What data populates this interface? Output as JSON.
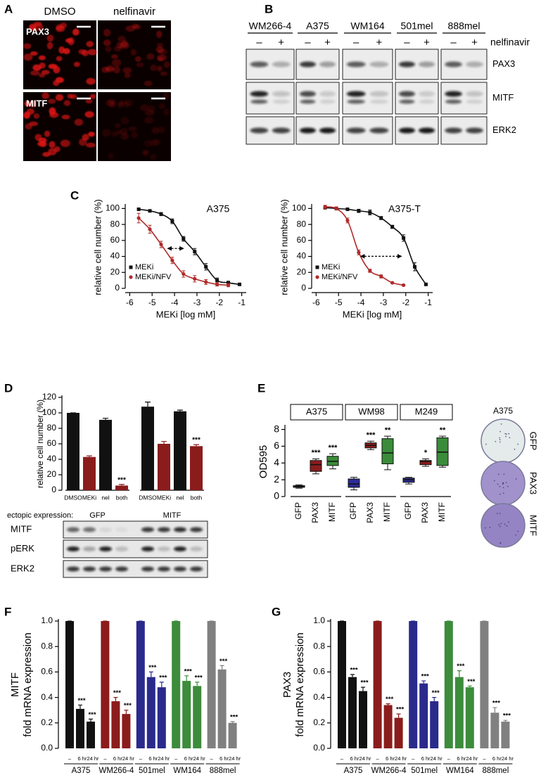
{
  "panels": {
    "A": {
      "letter": "A",
      "columns": [
        "DMSO",
        "nelfinavir"
      ],
      "rows": [
        "PAX3",
        "MITF"
      ]
    },
    "B": {
      "letter": "B",
      "cell_lines": [
        "WM266-4",
        "A375",
        "WM164",
        "501mel",
        "888mel"
      ],
      "treatments": [
        "–",
        "+"
      ],
      "treatment_label": "nelfinavir",
      "proteins": [
        "PAX3",
        "MITF",
        "ERK2"
      ]
    },
    "C": {
      "letter": "C"
    },
    "D": {
      "letter": "D",
      "ectopic_label": "ectopic expression:",
      "blot_proteins": [
        "MITF",
        "pERK",
        "ERK2"
      ]
    },
    "E": {
      "letter": "E",
      "plate_title": "A375",
      "plate_labels": [
        "GFP",
        "PAX3",
        "MITF"
      ]
    },
    "F": {
      "letter": "F"
    },
    "G": {
      "letter": "G"
    }
  },
  "chart_data": [
    {
      "type": "line",
      "title": "A375",
      "xlabel": "MEKi [log mM]",
      "ylabel": "relative cell number (%)",
      "x": [
        -5.6,
        -5.1,
        -4.6,
        -4.1,
        -3.6,
        -3.1,
        -2.6,
        -2.1,
        -1.6,
        -1.1
      ],
      "series": [
        {
          "name": "MEKi",
          "color": "#111111",
          "marker": "square",
          "values": [
            99,
            97,
            93,
            84,
            62,
            46,
            27,
            10,
            7,
            5
          ],
          "errors": [
            1,
            1,
            2,
            3,
            3,
            4,
            4,
            3,
            2,
            1
          ]
        },
        {
          "name": "MEKi/NFV",
          "color": "#b02a2a",
          "marker": "circle",
          "values": [
            88,
            74,
            55,
            35,
            18,
            12,
            8,
            5,
            4,
            null
          ],
          "errors": [
            6,
            5,
            4,
            4,
            4,
            4,
            3,
            2,
            2,
            null
          ]
        }
      ],
      "xlim": [
        -6.2,
        -0.8
      ],
      "ylim": [
        0,
        103
      ],
      "xticks": [
        -6,
        -5,
        -4,
        -3,
        -2,
        -1
      ],
      "yticks": [
        0,
        20,
        40,
        60,
        80,
        100
      ],
      "legend": "lower left"
    },
    {
      "type": "line",
      "title": "A375-T",
      "xlabel": "MEKi [log mM]",
      "ylabel": "relative cell number (%)",
      "x": [
        -5.6,
        -5.1,
        -4.6,
        -4.1,
        -3.6,
        -3.1,
        -2.6,
        -2.1,
        -1.6,
        -1.1
      ],
      "series": [
        {
          "name": "MEKi",
          "color": "#111111",
          "marker": "square",
          "values": [
            101,
            100,
            99,
            97,
            95,
            88,
            77,
            63,
            27,
            5
          ],
          "errors": [
            1,
            1,
            1,
            2,
            3,
            2,
            2,
            4,
            5,
            1
          ]
        },
        {
          "name": "MEKi/NFV",
          "color": "#b02a2a",
          "marker": "circle",
          "values": [
            102,
            100,
            85,
            45,
            22,
            15,
            7,
            4,
            null,
            null
          ],
          "errors": [
            2,
            2,
            3,
            3,
            2,
            2,
            1,
            1,
            null,
            null
          ]
        }
      ],
      "xlim": [
        -6.2,
        -0.8
      ],
      "ylim": [
        0,
        103
      ],
      "xticks": [
        -6,
        -5,
        -4,
        -3,
        -2,
        -1
      ],
      "yticks": [
        0,
        20,
        40,
        60,
        80,
        100
      ],
      "legend": "lower left"
    },
    {
      "type": "bar",
      "ylabel": "relative cell number (%)",
      "categories": [
        "DMSO",
        "MEKi",
        "nel",
        "both",
        "DMSO",
        "MEKi",
        "nel",
        "both"
      ],
      "groups": [
        "GFP",
        "MITF"
      ],
      "values": [
        100,
        43,
        91,
        6,
        108,
        60,
        102,
        57
      ],
      "errors": [
        0,
        1.5,
        2,
        1.5,
        6,
        3,
        1.5,
        2
      ],
      "colors": [
        "#111111",
        "#8b1c1c",
        "#111111",
        "#8b1c1c",
        "#111111",
        "#8b1c1c",
        "#111111",
        "#8b1c1c"
      ],
      "significance": [
        null,
        null,
        null,
        "***",
        null,
        null,
        null,
        "***"
      ],
      "ylim": [
        0,
        120
      ],
      "yticks": [
        0,
        20,
        40,
        60,
        80,
        100,
        120
      ]
    },
    {
      "type": "box",
      "ylabel": "OD595",
      "groups": [
        "A375",
        "WM98",
        "M249"
      ],
      "categories": [
        "GFP",
        "PAX3",
        "MITF"
      ],
      "colors": [
        "#2b2b96",
        "#8b1c1c",
        "#3a8c3a"
      ],
      "values": [
        [
          [
            1.0,
            1.1,
            1.2,
            1.3,
            1.4
          ],
          [
            2.7,
            3.0,
            3.8,
            4.3,
            4.5
          ],
          [
            3.3,
            3.7,
            4.2,
            4.8,
            5.1
          ]
        ],
        [
          [
            0.8,
            1.1,
            1.5,
            2.1,
            2.3
          ],
          [
            5.6,
            5.8,
            6.1,
            6.4,
            6.6
          ],
          [
            3.2,
            3.9,
            5.2,
            6.9,
            7.2
          ]
        ],
        [
          [
            1.5,
            1.7,
            2.0,
            2.2,
            2.3
          ],
          [
            3.6,
            3.8,
            4.2,
            4.3,
            4.5
          ],
          [
            3.5,
            3.7,
            5.3,
            7.0,
            7.2
          ]
        ]
      ],
      "significance": [
        [
          null,
          "***",
          "***"
        ],
        [
          null,
          "***",
          "**"
        ],
        [
          null,
          "*",
          "**"
        ]
      ],
      "ylim": [
        0,
        8.3
      ],
      "yticks": [
        0,
        2,
        4,
        6,
        8
      ]
    },
    {
      "type": "bar",
      "ylabel": [
        "MITF",
        "fold mRNA expression"
      ],
      "groups": [
        "A375",
        "WM266-4",
        "501mel",
        "WM164",
        "888mel"
      ],
      "conditions": [
        "–",
        "6 hr",
        "24 hr"
      ],
      "colors": [
        "#111111",
        "#8b1c1c",
        "#2a2a8c",
        "#3c8c3c",
        "#808080"
      ],
      "values": [
        [
          1,
          0.31,
          0.21
        ],
        [
          1,
          0.37,
          0.27
        ],
        [
          1,
          0.56,
          0.48
        ],
        [
          1,
          0.53,
          0.49
        ],
        [
          1,
          0.62,
          0.2
        ]
      ],
      "errors": [
        [
          0,
          0.03,
          0.02
        ],
        [
          0,
          0.03,
          0.03
        ],
        [
          0,
          0.04,
          0.04
        ],
        [
          0,
          0.04,
          0.03
        ],
        [
          0,
          0.03,
          0.01
        ]
      ],
      "significance": [
        [
          null,
          "***",
          "***"
        ],
        [
          null,
          "***",
          "***"
        ],
        [
          null,
          "***",
          "***"
        ],
        [
          null,
          "***",
          "***"
        ],
        [
          null,
          "***",
          "***"
        ]
      ],
      "ylim": [
        0,
        1
      ],
      "yticks": [
        {
          "value": 0,
          "label": "0.0"
        },
        0.2,
        0.4,
        0.6,
        0.8,
        {
          "value": 1,
          "label": "1.0"
        }
      ]
    },
    {
      "type": "bar",
      "ylabel": [
        "PAX3",
        "fold mRNA expression"
      ],
      "groups": [
        "A375",
        "WM266-4",
        "501mel",
        "WM164",
        "888mel"
      ],
      "conditions": [
        "–",
        "6 hr",
        "24 hr"
      ],
      "colors": [
        "#111111",
        "#8b1c1c",
        "#2a2a8c",
        "#3c8c3c",
        "#808080"
      ],
      "values": [
        [
          1,
          0.56,
          0.45
        ],
        [
          1,
          0.34,
          0.24
        ],
        [
          1,
          0.51,
          0.37
        ],
        [
          1,
          0.56,
          0.48
        ],
        [
          1,
          0.28,
          0.21
        ]
      ],
      "errors": [
        [
          0,
          0.02,
          0.03
        ],
        [
          0,
          0.01,
          0.03
        ],
        [
          0,
          0.02,
          0.03
        ],
        [
          0,
          0.05,
          0.01
        ],
        [
          0,
          0.04,
          0.01
        ]
      ],
      "significance": [
        [
          null,
          "***",
          "***"
        ],
        [
          null,
          "***",
          "***"
        ],
        [
          null,
          "***",
          "***"
        ],
        [
          null,
          "***",
          "***"
        ],
        [
          null,
          "***",
          "***"
        ]
      ],
      "ylim": [
        0,
        1
      ],
      "yticks": [
        {
          "value": 0,
          "label": "0.0"
        },
        0.2,
        0.4,
        0.6,
        0.8,
        {
          "value": 1,
          "label": "1.0"
        }
      ]
    }
  ]
}
